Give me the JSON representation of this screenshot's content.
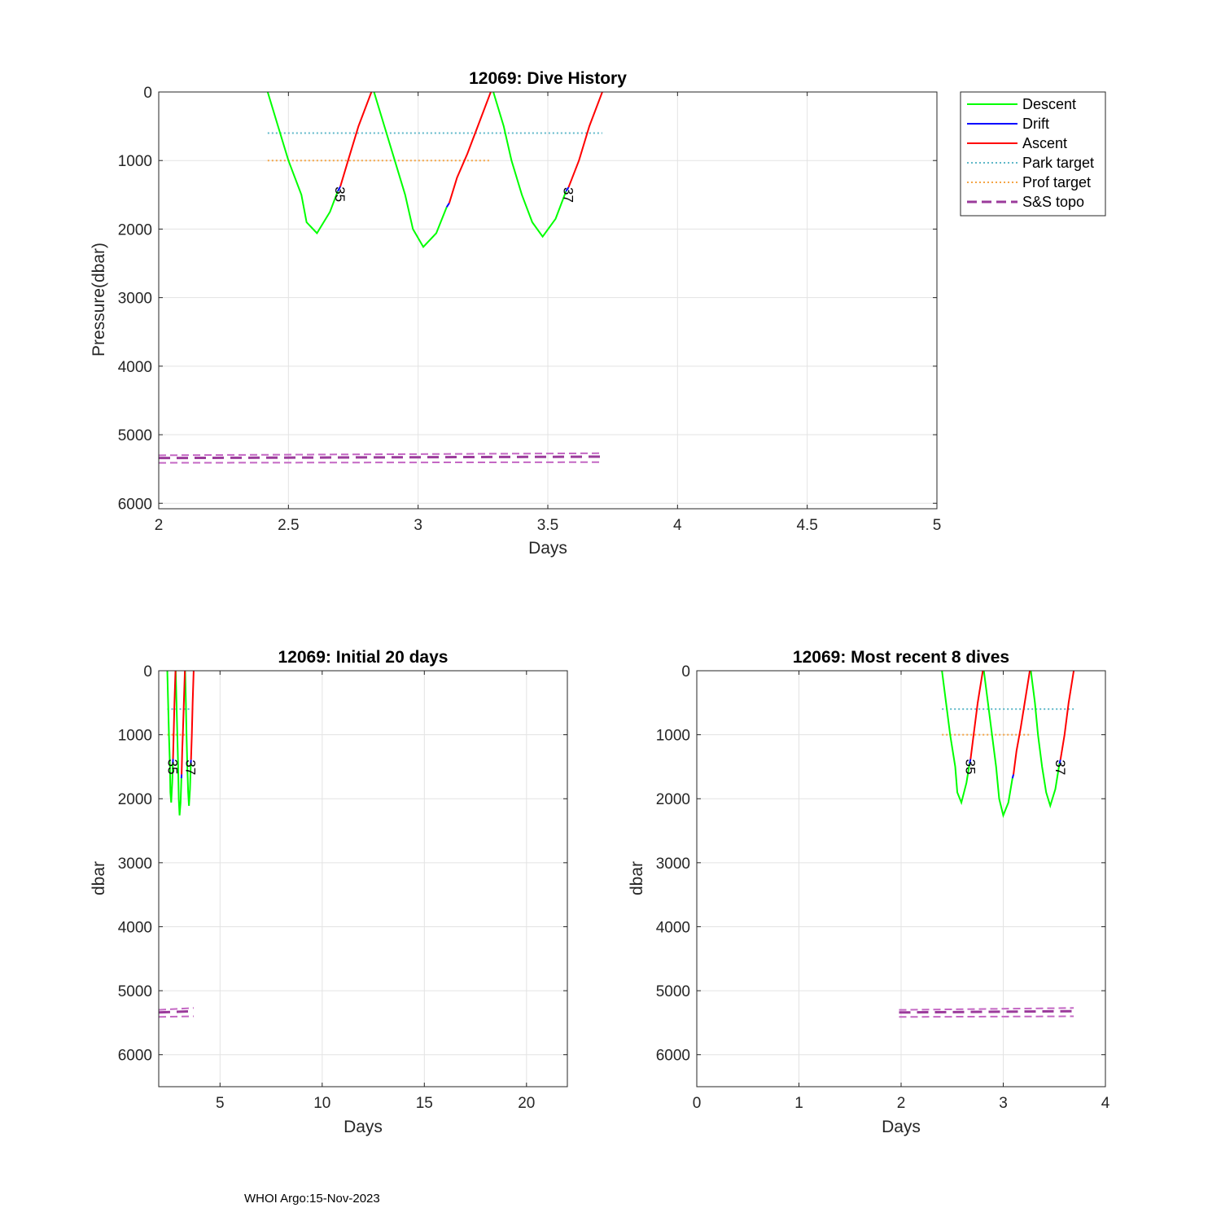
{
  "footer": "WHOI Argo:15-Nov-2023",
  "colors": {
    "descent": "#00ff00",
    "drift": "#0000ff",
    "ascent": "#ff0000",
    "park_target": "#5fb8c9",
    "prof_target": "#f5a545",
    "topo": "#9b3b9b",
    "topo_band": "#c468c4"
  },
  "legend": {
    "items": [
      {
        "label": "Descent",
        "key": "descent",
        "style": "solid"
      },
      {
        "label": "Drift",
        "key": "drift",
        "style": "solid"
      },
      {
        "label": "Ascent",
        "key": "ascent",
        "style": "solid"
      },
      {
        "label": "Park target",
        "key": "park_target",
        "style": "dotted"
      },
      {
        "label": "Prof target",
        "key": "prof_target",
        "style": "dotted"
      },
      {
        "label": "S&S topo",
        "key": "topo",
        "style": "dashed"
      }
    ]
  },
  "chart_data": [
    {
      "type": "line",
      "title": "12069: Dive History",
      "xlabel": "Days",
      "ylabel": "Pressure(dbar)",
      "xlim": [
        2,
        5
      ],
      "ylim": [
        0,
        6080
      ],
      "y_reversed": true,
      "xticks": [
        "2",
        "2.5",
        "3",
        "3.5",
        "4",
        "4.5",
        "5"
      ],
      "xtick_values": [
        2,
        2.5,
        3,
        3.5,
        4,
        4.5,
        5
      ],
      "yticks": [
        "0",
        "1000",
        "2000",
        "3000",
        "4000",
        "5000",
        "6000"
      ],
      "ytick_values": [
        0,
        1000,
        2000,
        3000,
        4000,
        5000,
        6000
      ],
      "grid": true,
      "legend": "outside top-right"
    },
    {
      "type": "line",
      "title": "12069: Initial 20 days",
      "xlabel": "Days",
      "ylabel": "dbar",
      "xlim": [
        2,
        22
      ],
      "ylim": [
        0,
        6500
      ],
      "y_reversed": true,
      "xticks": [
        "5",
        "10",
        "15",
        "20"
      ],
      "xtick_values": [
        5,
        10,
        15,
        20
      ],
      "yticks": [
        "0",
        "1000",
        "2000",
        "3000",
        "4000",
        "5000",
        "6000"
      ],
      "ytick_values": [
        0,
        1000,
        2000,
        3000,
        4000,
        5000,
        6000
      ],
      "grid": true
    },
    {
      "type": "line",
      "title": "12069: Most recent 8 dives",
      "xlabel": "Days",
      "ylabel": "dbar",
      "xlim": [
        0,
        4
      ],
      "ylim": [
        0,
        6500
      ],
      "y_reversed": true,
      "xticks": [
        "0",
        "1",
        "2",
        "3",
        "4"
      ],
      "xtick_values": [
        0,
        1,
        2,
        3,
        4
      ],
      "yticks": [
        "0",
        "1000",
        "2000",
        "3000",
        "4000",
        "5000",
        "6000"
      ],
      "ytick_values": [
        0,
        1000,
        2000,
        3000,
        4000,
        5000,
        6000
      ],
      "grid": true
    }
  ],
  "series": {
    "descent": [
      [
        [
          2.42,
          0
        ],
        [
          2.46,
          500
        ],
        [
          2.5,
          1000
        ],
        [
          2.55,
          1500
        ],
        [
          2.57,
          1900
        ],
        [
          2.61,
          2060
        ],
        [
          2.66,
          1750
        ],
        [
          2.69,
          1450
        ]
      ],
      [
        [
          2.83,
          0
        ],
        [
          2.87,
          500
        ],
        [
          2.91,
          1000
        ],
        [
          2.95,
          1500
        ],
        [
          2.98,
          2000
        ],
        [
          3.02,
          2260
        ],
        [
          3.07,
          2060
        ],
        [
          3.11,
          1680
        ]
      ],
      [
        [
          3.29,
          0
        ],
        [
          3.33,
          500
        ],
        [
          3.36,
          1000
        ],
        [
          3.4,
          1500
        ],
        [
          3.44,
          1900
        ],
        [
          3.48,
          2110
        ],
        [
          3.53,
          1850
        ],
        [
          3.57,
          1450
        ]
      ]
    ],
    "drift": [
      [
        [
          2.69,
          1450
        ],
        [
          2.7,
          1380
        ]
      ],
      [
        [
          3.11,
          1680
        ],
        [
          3.12,
          1620
        ]
      ],
      [
        [
          3.57,
          1450
        ],
        [
          3.58,
          1390
        ]
      ]
    ],
    "ascent": [
      [
        [
          2.7,
          1380
        ],
        [
          2.73,
          1000
        ],
        [
          2.77,
          500
        ],
        [
          2.81,
          100
        ],
        [
          2.82,
          0
        ]
      ],
      [
        [
          3.12,
          1620
        ],
        [
          3.15,
          1250
        ],
        [
          3.19,
          900
        ],
        [
          3.23,
          500
        ],
        [
          3.27,
          100
        ],
        [
          3.28,
          0
        ]
      ],
      [
        [
          3.58,
          1390
        ],
        [
          3.62,
          1000
        ],
        [
          3.66,
          500
        ],
        [
          3.7,
          100
        ],
        [
          3.71,
          0
        ]
      ]
    ],
    "park_target": [
      [
        2.42,
        600
      ],
      [
        3.71,
        600
      ]
    ],
    "prof_target": [
      [
        2.42,
        1000
      ],
      [
        3.28,
        1000
      ]
    ],
    "topo_mean": [
      [
        2.0,
        5340
      ],
      [
        3.71,
        5320
      ]
    ],
    "topo_band_upper": [
      [
        2.0,
        5300
      ],
      [
        3.71,
        5270
      ]
    ],
    "topo_band_lower": [
      [
        2.0,
        5410
      ],
      [
        3.71,
        5400
      ]
    ],
    "labels": [
      {
        "text": "35",
        "x": 2.7,
        "y": 1380
      },
      {
        "text": "37",
        "x": 3.58,
        "y": 1390
      }
    ]
  }
}
